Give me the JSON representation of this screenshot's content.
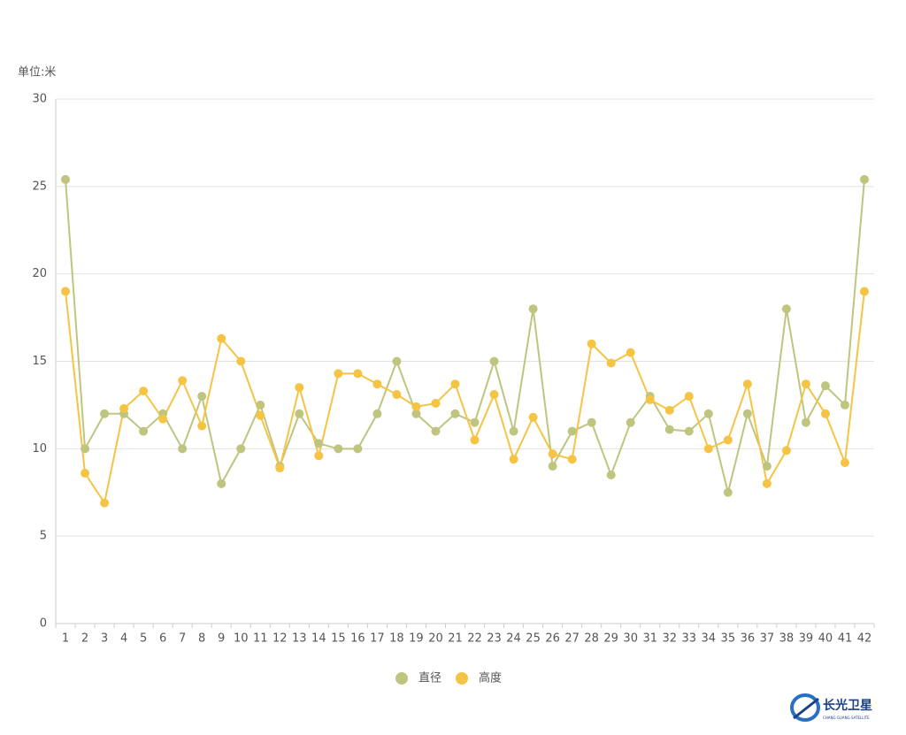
{
  "chart_data": {
    "type": "line",
    "y_label": "单位:米",
    "categories": [
      "1",
      "2",
      "3",
      "4",
      "5",
      "6",
      "7",
      "8",
      "9",
      "10",
      "11",
      "12",
      "13",
      "14",
      "15",
      "16",
      "17",
      "18",
      "19",
      "20",
      "21",
      "22",
      "23",
      "24",
      "25",
      "26",
      "27",
      "28",
      "29",
      "30",
      "31",
      "32",
      "33",
      "34",
      "35",
      "36",
      "37",
      "38",
      "39",
      "40",
      "41",
      "42"
    ],
    "series": [
      {
        "name": "直径",
        "color": "#bfc57f",
        "values": [
          25.4,
          10,
          12,
          12,
          11,
          12,
          10,
          13,
          8,
          10,
          12.5,
          9,
          12,
          10.3,
          10,
          10,
          12,
          15,
          12,
          11,
          12,
          11.5,
          15,
          11,
          18,
          9,
          11,
          11.5,
          8.5,
          11.5,
          13,
          11.1,
          11,
          12,
          7.5,
          12,
          9,
          18,
          11.5,
          13.6,
          12.5,
          25.4
        ]
      },
      {
        "name": "高度",
        "color": "#f5c444",
        "values": [
          19,
          8.6,
          6.9,
          12.3,
          13.3,
          11.7,
          13.9,
          11.3,
          16.3,
          15,
          11.9,
          8.9,
          13.5,
          9.6,
          14.3,
          14.3,
          13.7,
          13.1,
          12.4,
          12.6,
          13.7,
          10.5,
          13.1,
          9.4,
          11.8,
          9.7,
          9.4,
          16,
          14.9,
          15.5,
          12.8,
          12.2,
          13,
          10,
          10.5,
          13.7,
          8,
          9.9,
          13.7,
          12,
          9.2,
          19
        ]
      }
    ],
    "ylim": [
      0,
      30
    ],
    "yticks": [
      0,
      5,
      10,
      15,
      20,
      25,
      30
    ],
    "grid": true
  },
  "logo": {
    "name": "长光卫星",
    "subtitle": "CHANG GUANG SATELLITE"
  }
}
